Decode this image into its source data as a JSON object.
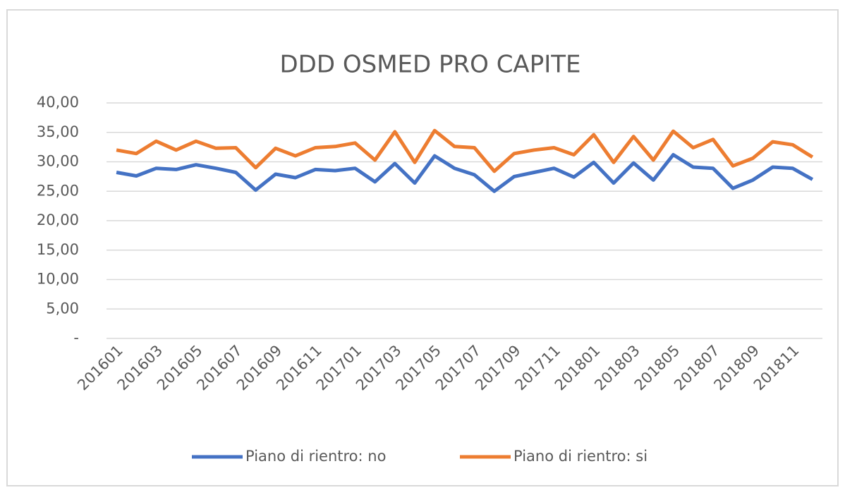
{
  "chart_data": {
    "type": "line",
    "title": "DDD OSMED PRO CAPITE",
    "categories": [
      "201601",
      null,
      "201603",
      null,
      "201605",
      null,
      "201607",
      null,
      "201609",
      null,
      "201611",
      null,
      "201701",
      null,
      "201703",
      null,
      "201705",
      null,
      "201707",
      null,
      "201709",
      null,
      "201711",
      null,
      "201801",
      null,
      "201803",
      null,
      "201805",
      null,
      "201807",
      null,
      "201809",
      null,
      "201811",
      null
    ],
    "series": [
      {
        "name": "Piano di rientro: no",
        "color": "#4472c4",
        "values": [
          28.2,
          27.6,
          28.9,
          28.7,
          29.5,
          28.9,
          28.2,
          25.2,
          27.9,
          27.3,
          28.7,
          28.5,
          28.9,
          26.6,
          29.7,
          26.4,
          31.0,
          28.9,
          27.8,
          25.0,
          27.5,
          28.2,
          28.9,
          27.4,
          29.9,
          26.4,
          29.8,
          26.9,
          31.2,
          29.1,
          28.9,
          25.5,
          26.9,
          29.1,
          28.9,
          27.0
        ]
      },
      {
        "name": "Piano di rientro: si",
        "color": "#ed7d31",
        "values": [
          32.0,
          31.4,
          33.5,
          32.0,
          33.5,
          32.3,
          32.4,
          29.0,
          32.3,
          31.0,
          32.4,
          32.6,
          33.2,
          30.3,
          35.1,
          29.9,
          35.3,
          32.6,
          32.4,
          28.4,
          31.4,
          32.0,
          32.4,
          31.2,
          34.6,
          29.9,
          34.3,
          30.3,
          35.2,
          32.4,
          33.8,
          29.3,
          30.6,
          33.4,
          32.9,
          30.8
        ]
      }
    ],
    "ylim": [
      0,
      40
    ],
    "yticks": [
      {
        "value": 0,
        "label": "-"
      },
      {
        "value": 5,
        "label": "5,00"
      },
      {
        "value": 10,
        "label": "10,00"
      },
      {
        "value": 15,
        "label": "15,00"
      },
      {
        "value": 20,
        "label": "20,00"
      },
      {
        "value": 25,
        "label": "25,00"
      },
      {
        "value": 30,
        "label": "30,00"
      },
      {
        "value": 35,
        "label": "35,00"
      },
      {
        "value": 40,
        "label": "40,00"
      }
    ],
    "grid": true,
    "legend": "bottom"
  }
}
